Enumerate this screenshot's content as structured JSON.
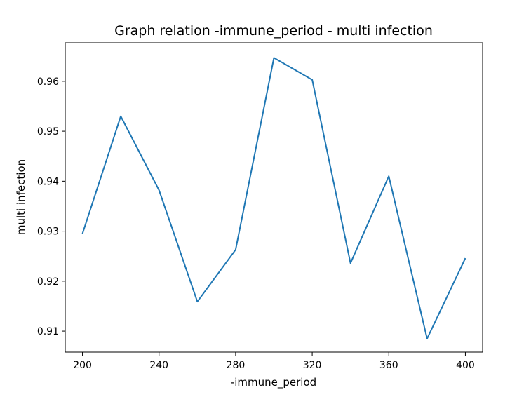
{
  "chart_data": {
    "type": "line",
    "title": "Graph relation -immune_period - multi infection",
    "xlabel": "-immune_period",
    "ylabel": "multi infection",
    "xlim": [
      191,
      409
    ],
    "ylim": [
      0.9058,
      0.9677
    ],
    "x_ticks": [
      200,
      240,
      280,
      320,
      360,
      400
    ],
    "y_ticks": [
      0.91,
      0.92,
      0.93,
      0.94,
      0.95,
      0.96
    ],
    "x_tick_labels": [
      "200",
      "240",
      "280",
      "320",
      "360",
      "400"
    ],
    "y_tick_labels": [
      "0.91",
      "0.92",
      "0.93",
      "0.94",
      "0.95",
      "0.96"
    ],
    "grid": false,
    "series": [
      {
        "color": "#1f77b4",
        "x": [
          200,
          220,
          240,
          260,
          280,
          300,
          320,
          340,
          360,
          380,
          400
        ],
        "y": [
          0.9295,
          0.953,
          0.9382,
          0.9159,
          0.9263,
          0.9647,
          0.9603,
          0.9236,
          0.941,
          0.9085,
          0.9246
        ]
      }
    ]
  }
}
